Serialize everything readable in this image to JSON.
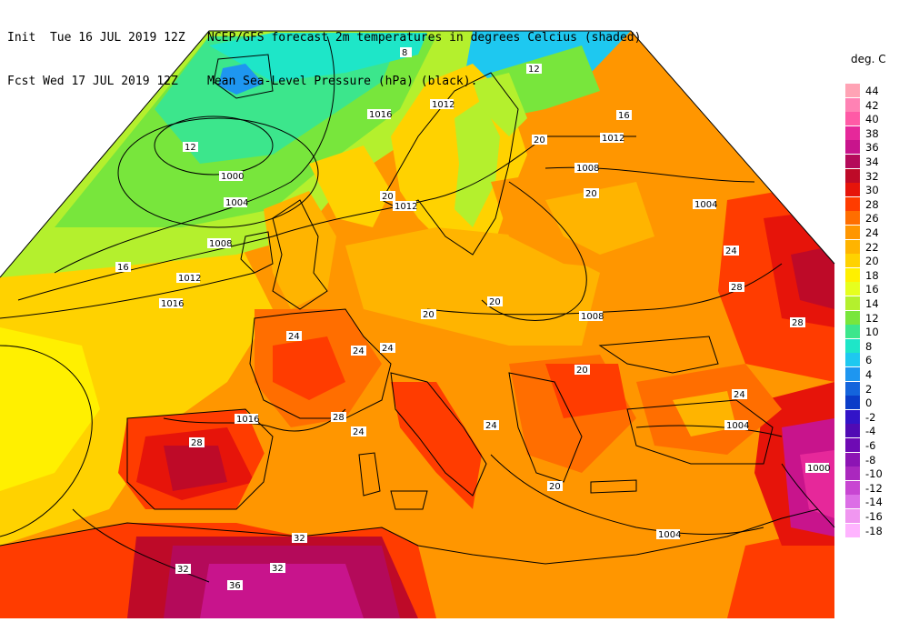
{
  "header": {
    "init_label": "Init  Tue 16 JUL 2019 12Z",
    "fcst_label": "Fcst Wed 17 JUL 2019 12Z",
    "title_line1": "NCEP/GFS forecast 2m temperatures in degrees Celcius (shaded)",
    "title_line2": "Mean Sea-Level Pressure (hPa) (black)."
  },
  "legend": {
    "title": "deg. C",
    "items": [
      {
        "label": "44",
        "color": "#ffa3b5"
      },
      {
        "label": "42",
        "color": "#ff82b4"
      },
      {
        "label": "40",
        "color": "#ff5aa6"
      },
      {
        "label": "38",
        "color": "#e6289a"
      },
      {
        "label": "36",
        "color": "#c8148c"
      },
      {
        "label": "34",
        "color": "#b40a5a"
      },
      {
        "label": "32",
        "color": "#be0a28"
      },
      {
        "label": "30",
        "color": "#e6140a"
      },
      {
        "label": "28",
        "color": "#ff3c00"
      },
      {
        "label": "26",
        "color": "#ff6e00"
      },
      {
        "label": "24",
        "color": "#ff9600"
      },
      {
        "label": "22",
        "color": "#ffb400"
      },
      {
        "label": "20",
        "color": "#ffd200"
      },
      {
        "label": "18",
        "color": "#fff000"
      },
      {
        "label": "16",
        "color": "#e6ff1e"
      },
      {
        "label": "14",
        "color": "#b4f02d"
      },
      {
        "label": "12",
        "color": "#78e63c"
      },
      {
        "label": "10",
        "color": "#3ce68c"
      },
      {
        "label": "8",
        "color": "#1ee6c8"
      },
      {
        "label": "6",
        "color": "#1ec8f0"
      },
      {
        "label": "4",
        "color": "#1e96f0"
      },
      {
        "label": "2",
        "color": "#1464dc"
      },
      {
        "label": "0",
        "color": "#0a3cc8"
      },
      {
        "label": "-2",
        "color": "#3214c8"
      },
      {
        "label": "-4",
        "color": "#500ab4"
      },
      {
        "label": "-6",
        "color": "#6e0ab4"
      },
      {
        "label": "-8",
        "color": "#8c14b4"
      },
      {
        "label": "-10",
        "color": "#aa28be"
      },
      {
        "label": "-12",
        "color": "#c846d2"
      },
      {
        "label": "-14",
        "color": "#dc6ee6"
      },
      {
        "label": "-16",
        "color": "#f096f0"
      },
      {
        "label": "-18",
        "color": "#ffb4ff"
      }
    ]
  },
  "isobar_labels": [
    "1016",
    "1012",
    "1012",
    "1008",
    "1004",
    "1000",
    "1004",
    "1008",
    "1012",
    "1016",
    "1012",
    "1008",
    "1004",
    "1004",
    "1016",
    "1000"
  ],
  "temp_labels": [
    "8",
    "12",
    "12",
    "16",
    "20",
    "20",
    "20",
    "24",
    "24",
    "24",
    "28",
    "28",
    "28",
    "32",
    "32",
    "32",
    "36",
    "16",
    "20",
    "20",
    "24",
    "24",
    "28",
    "24",
    "20",
    "20",
    "24"
  ]
}
